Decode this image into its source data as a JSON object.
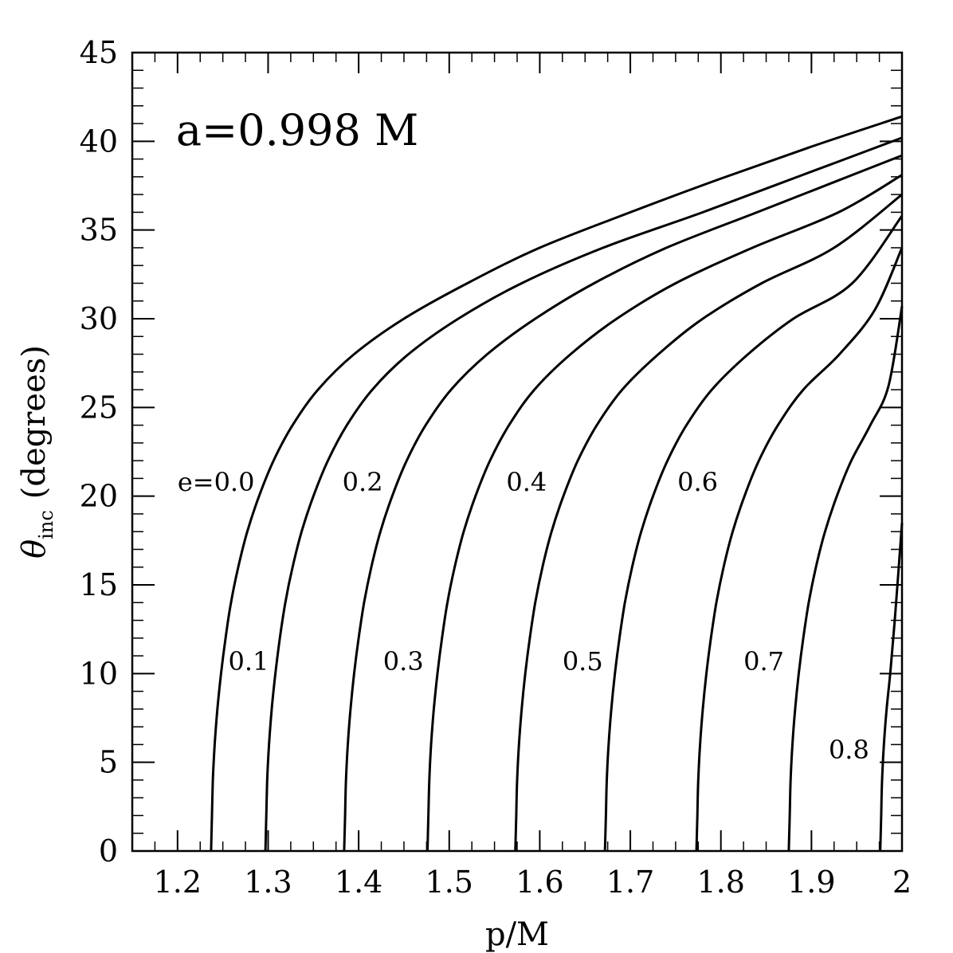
{
  "chart_data": {
    "type": "line",
    "xlabel": "p/M",
    "ylabel_symbol": "θ",
    "ylabel_subscript": "inc",
    "ylabel_rest": "(degrees)",
    "xlim": [
      1.15,
      2.0
    ],
    "ylim": [
      0,
      45
    ],
    "x_ticks": [
      {
        "value": 1.2,
        "label": "1.2"
      },
      {
        "value": 1.3,
        "label": "1.3"
      },
      {
        "value": 1.4,
        "label": "1.4"
      },
      {
        "value": 1.5,
        "label": "1.5"
      },
      {
        "value": 1.6,
        "label": "1.6"
      },
      {
        "value": 1.7,
        "label": "1.7"
      },
      {
        "value": 1.8,
        "label": "1.8"
      },
      {
        "value": 1.9,
        "label": "1.9"
      },
      {
        "value": 2.0,
        "label": "2"
      }
    ],
    "y_ticks": [
      {
        "value": 0,
        "label": "0"
      },
      {
        "value": 5,
        "label": "5"
      },
      {
        "value": 10,
        "label": "10"
      },
      {
        "value": 15,
        "label": "15"
      },
      {
        "value": 20,
        "label": "20"
      },
      {
        "value": 25,
        "label": "25"
      },
      {
        "value": 30,
        "label": "30"
      },
      {
        "value": 35,
        "label": "35"
      },
      {
        "value": 40,
        "label": "40"
      },
      {
        "value": 45,
        "label": "45"
      }
    ],
    "x_minor_step": 0.025,
    "y_minor_step": 1,
    "grid": false,
    "annotation": {
      "text": "a=0.998 M",
      "x": 1.2,
      "y": 39.8
    },
    "series": [
      {
        "label": "e=0.0",
        "label_x": 1.2,
        "label_y": 20.3,
        "points": [
          [
            1.237,
            0
          ],
          [
            1.238,
            2
          ],
          [
            1.239,
            4
          ],
          [
            1.241,
            6
          ],
          [
            1.244,
            8
          ],
          [
            1.248,
            10
          ],
          [
            1.253,
            12
          ],
          [
            1.259,
            14
          ],
          [
            1.267,
            16
          ],
          [
            1.277,
            18
          ],
          [
            1.29,
            20
          ],
          [
            1.306,
            22
          ],
          [
            1.327,
            24
          ],
          [
            1.355,
            26
          ],
          [
            1.395,
            28
          ],
          [
            1.45,
            30
          ],
          [
            1.52,
            32
          ],
          [
            1.6,
            34
          ],
          [
            1.7,
            36
          ],
          [
            1.8,
            37.9
          ],
          [
            1.9,
            39.7
          ],
          [
            2.0,
            41.4
          ]
        ]
      },
      {
        "label": "0.1",
        "label_x": 1.256,
        "label_y": 10.2,
        "points": [
          [
            1.297,
            0
          ],
          [
            1.298,
            2
          ],
          [
            1.299,
            4
          ],
          [
            1.301,
            6
          ],
          [
            1.304,
            8
          ],
          [
            1.308,
            10
          ],
          [
            1.313,
            12
          ],
          [
            1.319,
            14
          ],
          [
            1.327,
            16
          ],
          [
            1.337,
            18
          ],
          [
            1.35,
            20
          ],
          [
            1.366,
            22
          ],
          [
            1.387,
            24
          ],
          [
            1.415,
            26
          ],
          [
            1.455,
            28
          ],
          [
            1.51,
            30
          ],
          [
            1.58,
            32
          ],
          [
            1.67,
            34
          ],
          [
            1.78,
            36
          ],
          [
            1.89,
            38.1
          ],
          [
            2.0,
            40.2
          ]
        ]
      },
      {
        "label": "0.2",
        "label_x": 1.382,
        "label_y": 20.3,
        "points": [
          [
            1.384,
            0
          ],
          [
            1.385,
            2
          ],
          [
            1.386,
            4
          ],
          [
            1.388,
            6
          ],
          [
            1.391,
            8
          ],
          [
            1.395,
            10
          ],
          [
            1.4,
            12
          ],
          [
            1.406,
            14
          ],
          [
            1.414,
            16
          ],
          [
            1.424,
            18
          ],
          [
            1.437,
            20
          ],
          [
            1.453,
            22
          ],
          [
            1.474,
            24
          ],
          [
            1.502,
            26
          ],
          [
            1.542,
            28
          ],
          [
            1.595,
            30
          ],
          [
            1.66,
            32
          ],
          [
            1.74,
            34
          ],
          [
            1.84,
            36
          ],
          [
            1.93,
            37.8
          ],
          [
            2.0,
            39.2
          ]
        ]
      },
      {
        "label": "0.3",
        "label_x": 1.427,
        "label_y": 10.2,
        "points": [
          [
            1.476,
            0
          ],
          [
            1.477,
            2
          ],
          [
            1.478,
            4
          ],
          [
            1.48,
            6
          ],
          [
            1.483,
            8
          ],
          [
            1.487,
            10
          ],
          [
            1.492,
            12
          ],
          [
            1.498,
            14
          ],
          [
            1.506,
            16
          ],
          [
            1.516,
            18
          ],
          [
            1.529,
            20
          ],
          [
            1.545,
            22
          ],
          [
            1.566,
            24
          ],
          [
            1.594,
            26
          ],
          [
            1.634,
            28
          ],
          [
            1.685,
            30
          ],
          [
            1.75,
            32
          ],
          [
            1.835,
            34
          ],
          [
            1.93,
            36
          ],
          [
            2.0,
            38.1
          ]
        ]
      },
      {
        "label": "0.4",
        "label_x": 1.563,
        "label_y": 20.3,
        "points": [
          [
            1.573,
            0
          ],
          [
            1.574,
            2
          ],
          [
            1.575,
            4
          ],
          [
            1.577,
            6
          ],
          [
            1.58,
            8
          ],
          [
            1.584,
            10
          ],
          [
            1.589,
            12
          ],
          [
            1.595,
            14
          ],
          [
            1.603,
            16
          ],
          [
            1.613,
            18
          ],
          [
            1.626,
            20
          ],
          [
            1.642,
            22
          ],
          [
            1.663,
            24
          ],
          [
            1.691,
            26
          ],
          [
            1.731,
            28
          ],
          [
            1.78,
            30
          ],
          [
            1.845,
            32
          ],
          [
            1.925,
            34
          ],
          [
            2.0,
            37.0
          ]
        ]
      },
      {
        "label": "0.5",
        "label_x": 1.625,
        "label_y": 10.2,
        "points": [
          [
            1.672,
            0
          ],
          [
            1.673,
            2
          ],
          [
            1.674,
            4
          ],
          [
            1.676,
            6
          ],
          [
            1.679,
            8
          ],
          [
            1.683,
            10
          ],
          [
            1.688,
            12
          ],
          [
            1.694,
            14
          ],
          [
            1.702,
            16
          ],
          [
            1.712,
            18
          ],
          [
            1.725,
            20
          ],
          [
            1.741,
            22
          ],
          [
            1.762,
            24
          ],
          [
            1.79,
            26
          ],
          [
            1.83,
            28
          ],
          [
            1.88,
            30
          ],
          [
            1.945,
            32
          ],
          [
            2.0,
            35.8
          ]
        ]
      },
      {
        "label": "0.6",
        "label_x": 1.752,
        "label_y": 20.3,
        "points": [
          [
            1.773,
            0
          ],
          [
            1.774,
            2
          ],
          [
            1.775,
            4
          ],
          [
            1.777,
            6
          ],
          [
            1.78,
            8
          ],
          [
            1.784,
            10
          ],
          [
            1.789,
            12
          ],
          [
            1.795,
            14
          ],
          [
            1.803,
            16
          ],
          [
            1.813,
            18
          ],
          [
            1.826,
            20
          ],
          [
            1.842,
            22
          ],
          [
            1.863,
            24
          ],
          [
            1.891,
            26
          ],
          [
            1.931,
            28
          ],
          [
            1.97,
            30.5
          ],
          [
            2.0,
            34.0
          ]
        ]
      },
      {
        "label": "0.7",
        "label_x": 1.825,
        "label_y": 10.2,
        "points": [
          [
            1.875,
            0
          ],
          [
            1.876,
            2
          ],
          [
            1.877,
            4
          ],
          [
            1.879,
            6
          ],
          [
            1.882,
            8
          ],
          [
            1.886,
            10
          ],
          [
            1.891,
            12
          ],
          [
            1.897,
            14
          ],
          [
            1.905,
            16
          ],
          [
            1.915,
            18
          ],
          [
            1.928,
            20
          ],
          [
            1.944,
            22
          ],
          [
            1.965,
            24
          ],
          [
            1.985,
            26.2
          ],
          [
            2.0,
            30.7
          ]
        ]
      },
      {
        "label": "0.8",
        "label_x": 1.919,
        "label_y": 5.2,
        "points": [
          [
            1.976,
            0
          ],
          [
            1.977,
            2
          ],
          [
            1.978,
            4
          ],
          [
            1.98,
            6
          ],
          [
            1.983,
            8
          ],
          [
            1.987,
            10
          ],
          [
            1.992,
            13
          ],
          [
            2.0,
            18.5
          ]
        ]
      }
    ]
  }
}
